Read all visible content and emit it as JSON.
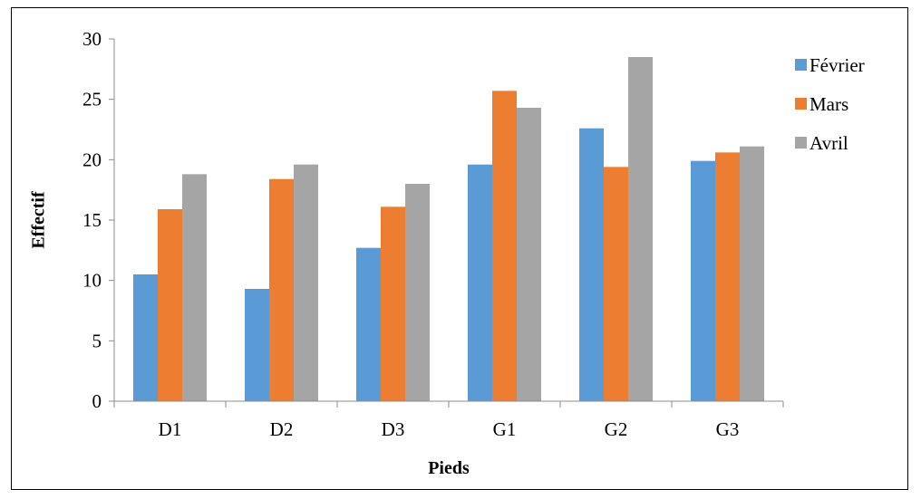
{
  "chart_data": {
    "type": "bar",
    "categories": [
      "D1",
      "D2",
      "D3",
      "G1",
      "G2",
      "G3"
    ],
    "series": [
      {
        "name": "Février",
        "color": "#5B9BD5",
        "values": [
          10.5,
          9.3,
          12.7,
          19.6,
          22.6,
          19.9
        ]
      },
      {
        "name": "Mars",
        "color": "#ED7D31",
        "values": [
          15.9,
          18.4,
          16.1,
          25.7,
          19.4,
          20.6
        ]
      },
      {
        "name": "Avril",
        "color": "#A5A5A5",
        "values": [
          18.8,
          19.6,
          18.0,
          24.3,
          28.5,
          21.1
        ]
      }
    ],
    "xlabel": "Pieds",
    "ylabel": "Effectif",
    "ylim": [
      0,
      30
    ],
    "yticks": [
      "0",
      "5",
      "10",
      "15",
      "20",
      "25",
      "30"
    ],
    "grid": false,
    "legend_position": "right"
  }
}
